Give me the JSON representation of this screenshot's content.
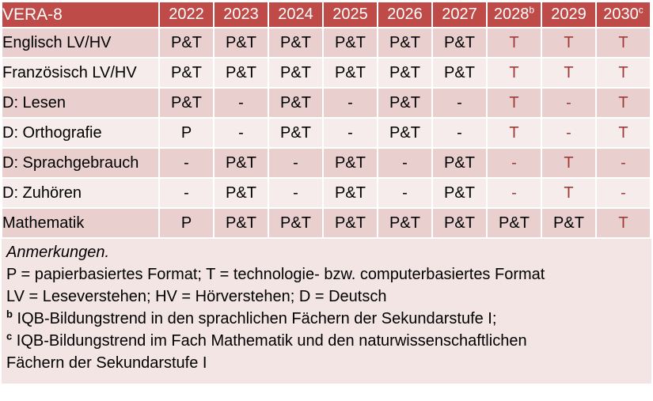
{
  "colors": {
    "header_bg": "#BE4B48",
    "header_text": "#FFFFFF",
    "row_dark": "#E9D0CF",
    "row_light": "#F6ECEB",
    "notes_bg": "#F2E5E4",
    "accent_text": "#9E3B39",
    "body_text": "#000000"
  },
  "table": {
    "title": "VERA-8",
    "columns": [
      {
        "label": "2022",
        "sup": ""
      },
      {
        "label": "2023",
        "sup": ""
      },
      {
        "label": "2024",
        "sup": ""
      },
      {
        "label": "2025",
        "sup": ""
      },
      {
        "label": "2026",
        "sup": ""
      },
      {
        "label": "2027",
        "sup": ""
      },
      {
        "label": "2028",
        "sup": "b"
      },
      {
        "label": "2029",
        "sup": ""
      },
      {
        "label": "2030",
        "sup": "c"
      }
    ],
    "rows": [
      {
        "label": "Englisch LV/HV",
        "cells": [
          {
            "text": "P&T",
            "red": false
          },
          {
            "text": "P&T",
            "red": false
          },
          {
            "text": "P&T",
            "red": false
          },
          {
            "text": "P&T",
            "red": false
          },
          {
            "text": "P&T",
            "red": false
          },
          {
            "text": "P&T",
            "red": false
          },
          {
            "text": "T",
            "red": true
          },
          {
            "text": "T",
            "red": true
          },
          {
            "text": "T",
            "red": true
          }
        ]
      },
      {
        "label": "Französisch LV/HV",
        "cells": [
          {
            "text": "P&T",
            "red": false
          },
          {
            "text": "P&T",
            "red": false
          },
          {
            "text": "P&T",
            "red": false
          },
          {
            "text": "P&T",
            "red": false
          },
          {
            "text": "P&T",
            "red": false
          },
          {
            "text": "P&T",
            "red": false
          },
          {
            "text": "T",
            "red": true
          },
          {
            "text": "T",
            "red": true
          },
          {
            "text": "T",
            "red": true
          }
        ]
      },
      {
        "label": "D: Lesen",
        "cells": [
          {
            "text": "P&T",
            "red": false
          },
          {
            "text": "-",
            "red": false
          },
          {
            "text": "P&T",
            "red": false
          },
          {
            "text": "-",
            "red": false
          },
          {
            "text": "P&T",
            "red": false
          },
          {
            "text": "-",
            "red": false
          },
          {
            "text": "T",
            "red": true
          },
          {
            "text": "-",
            "red": true
          },
          {
            "text": "T",
            "red": true
          }
        ]
      },
      {
        "label": "D: Orthografie",
        "cells": [
          {
            "text": "P",
            "red": false
          },
          {
            "text": "-",
            "red": false
          },
          {
            "text": "P&T",
            "red": false
          },
          {
            "text": "-",
            "red": false
          },
          {
            "text": "P&T",
            "red": false
          },
          {
            "text": "-",
            "red": false
          },
          {
            "text": "T",
            "red": true
          },
          {
            "text": "-",
            "red": true
          },
          {
            "text": "T",
            "red": true
          }
        ]
      },
      {
        "label": "D: Sprachgebrauch",
        "cells": [
          {
            "text": "-",
            "red": false
          },
          {
            "text": "P&T",
            "red": false
          },
          {
            "text": "-",
            "red": false
          },
          {
            "text": "P&T",
            "red": false
          },
          {
            "text": "-",
            "red": false
          },
          {
            "text": "P&T",
            "red": false
          },
          {
            "text": "-",
            "red": true
          },
          {
            "text": "T",
            "red": true
          },
          {
            "text": "-",
            "red": true
          }
        ]
      },
      {
        "label": "D: Zuhören",
        "cells": [
          {
            "text": "-",
            "red": false
          },
          {
            "text": "P&T",
            "red": false
          },
          {
            "text": "-",
            "red": false
          },
          {
            "text": "P&T",
            "red": false
          },
          {
            "text": "-",
            "red": false
          },
          {
            "text": "P&T",
            "red": false
          },
          {
            "text": "-",
            "red": true
          },
          {
            "text": "T",
            "red": true
          },
          {
            "text": "-",
            "red": true
          }
        ]
      },
      {
        "label": "Mathematik",
        "cells": [
          {
            "text": "P",
            "red": false
          },
          {
            "text": "P&T",
            "red": false
          },
          {
            "text": "P&T",
            "red": false
          },
          {
            "text": "P&T",
            "red": false
          },
          {
            "text": "P&T",
            "red": false
          },
          {
            "text": "P&T",
            "red": false
          },
          {
            "text": "P&T",
            "red": false
          },
          {
            "text": "P&T",
            "red": false
          },
          {
            "text": "T",
            "red": true
          }
        ]
      }
    ]
  },
  "notes": {
    "title": "Anmerkungen.",
    "lines": [
      {
        "sup": "",
        "text": "P = papierbasiertes Format; T = technologie- bzw. computerbasiertes Format"
      },
      {
        "sup": "",
        "text": "LV = Leseverstehen; HV = Hörverstehen; D = Deutsch"
      },
      {
        "sup": "b",
        "text": "IQB-Bildungstrend in den sprachlichen Fächern der Sekundarstufe I;"
      },
      {
        "sup": "c",
        "text": "IQB-Bildungstrend im Fach Mathematik und den naturwissenschaftlichen\nFächern der Sekundarstufe I"
      }
    ]
  }
}
